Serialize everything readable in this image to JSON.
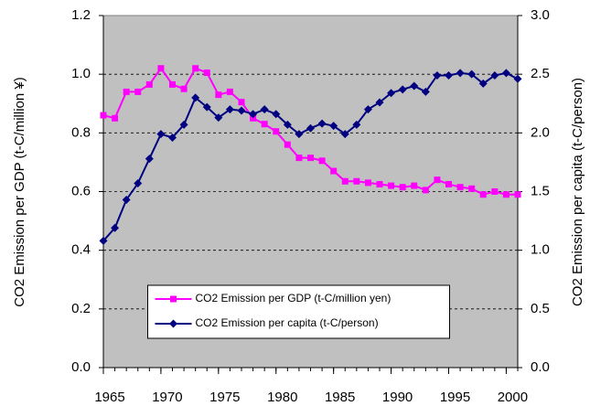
{
  "chart_data": {
    "type": "line",
    "y_label": "CO2 Emission per GDP (t-C/million ¥)",
    "y2_label": "CO2 Emission per capita (t-C/person)",
    "x": [
      1965,
      1966,
      1967,
      1968,
      1969,
      1970,
      1971,
      1972,
      1973,
      1974,
      1975,
      1976,
      1977,
      1978,
      1979,
      1980,
      1981,
      1982,
      1983,
      1984,
      1985,
      1986,
      1987,
      1988,
      1989,
      1990,
      1991,
      1992,
      1993,
      1994,
      1995,
      1996,
      1997,
      1998,
      1999,
      2000,
      2001
    ],
    "xlim": [
      1965,
      2001
    ],
    "xticks": [
      1965,
      1970,
      1975,
      1980,
      1985,
      1990,
      1995,
      2000
    ],
    "ylim": [
      0,
      1.2
    ],
    "yticks": [
      {
        "value": 0,
        "label": "0.0"
      },
      0.2,
      0.4,
      0.6,
      0.8,
      {
        "value": 1,
        "label": "1.0"
      },
      1.2
    ],
    "y2lim": [
      0,
      3
    ],
    "y2ticks": [
      {
        "value": 0,
        "label": "0.0"
      },
      0.5,
      {
        "value": 1,
        "label": "1.0"
      },
      1.5,
      {
        "value": 2,
        "label": "2.0"
      },
      2.5,
      {
        "value": 3,
        "label": "3.0"
      }
    ],
    "grid": true,
    "legend": "lower center",
    "series": [
      {
        "name": "CO2 Emission per GDP (t-C/million yen)",
        "color": "#ff00ff",
        "marker": "square",
        "values": [
          0.86,
          0.85,
          0.94,
          0.94,
          0.965,
          1.02,
          0.965,
          0.95,
          1.02,
          1.005,
          0.93,
          0.94,
          0.905,
          0.85,
          0.83,
          0.805,
          0.76,
          0.715,
          0.715,
          0.705,
          0.67,
          0.635,
          0.635,
          0.63,
          0.625,
          0.62,
          0.615,
          0.62,
          0.605,
          0.64,
          0.625,
          0.615,
          0.61,
          0.59,
          0.6,
          0.59,
          0.59
        ]
      },
      {
        "name": "CO2 Emission per capita (t-C/person)",
        "color": "#000080",
        "marker": "diamond",
        "axis": "y2",
        "values": [
          1.08,
          1.19,
          1.43,
          1.57,
          1.78,
          1.99,
          1.96,
          2.07,
          2.3,
          2.22,
          2.13,
          2.2,
          2.19,
          2.16,
          2.2,
          2.16,
          2.07,
          1.99,
          2.04,
          2.08,
          2.06,
          1.99,
          2.07,
          2.2,
          2.26,
          2.34,
          2.37,
          2.4,
          2.35,
          2.49,
          2.49,
          2.51,
          2.5,
          2.42,
          2.49,
          2.51,
          2.46
        ]
      }
    ]
  }
}
